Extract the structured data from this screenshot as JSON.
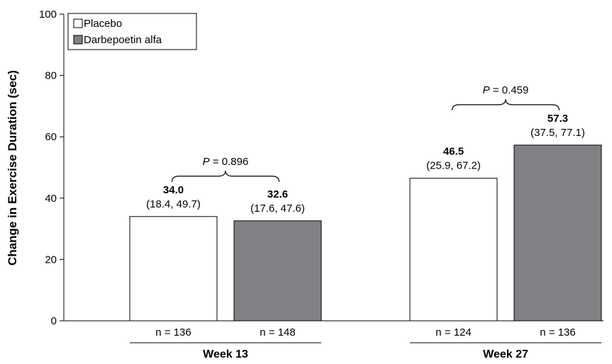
{
  "chart_data": {
    "type": "bar",
    "ylabel": "Change in Exercise Duration (sec)",
    "ylim": [
      0,
      100
    ],
    "yticks": [
      0,
      20,
      40,
      60,
      80,
      100
    ],
    "grid": false,
    "legend_placement": "top-left",
    "legend": [
      {
        "name": "Placebo",
        "color": "#ffffff"
      },
      {
        "name": "Darbepoetin alfa",
        "color": "#808184"
      }
    ],
    "groups": [
      {
        "label": "Week 13",
        "bars": [
          {
            "series": "Placebo",
            "value": 34.0,
            "value_text": "34.0",
            "ci_text": "(18.4, 49.7)",
            "n_text": "n = 136"
          },
          {
            "series": "Darbepoetin alfa",
            "value": 32.6,
            "value_text": "32.6",
            "ci_text": "(17.6, 47.6)",
            "n_text": "n = 148"
          }
        ],
        "p_label": "P",
        "p_value": " = 0.896"
      },
      {
        "label": "Week 27",
        "bars": [
          {
            "series": "Placebo",
            "value": 46.5,
            "value_text": "46.5",
            "ci_text": "(25.9, 67.2)",
            "n_text": "n = 124"
          },
          {
            "series": "Darbepoetin alfa",
            "value": 57.3,
            "value_text": "57.3",
            "ci_text": "(37.5, 77.1)",
            "n_text": "n = 136"
          }
        ],
        "p_label": "P",
        "p_value": " = 0.459"
      }
    ]
  }
}
